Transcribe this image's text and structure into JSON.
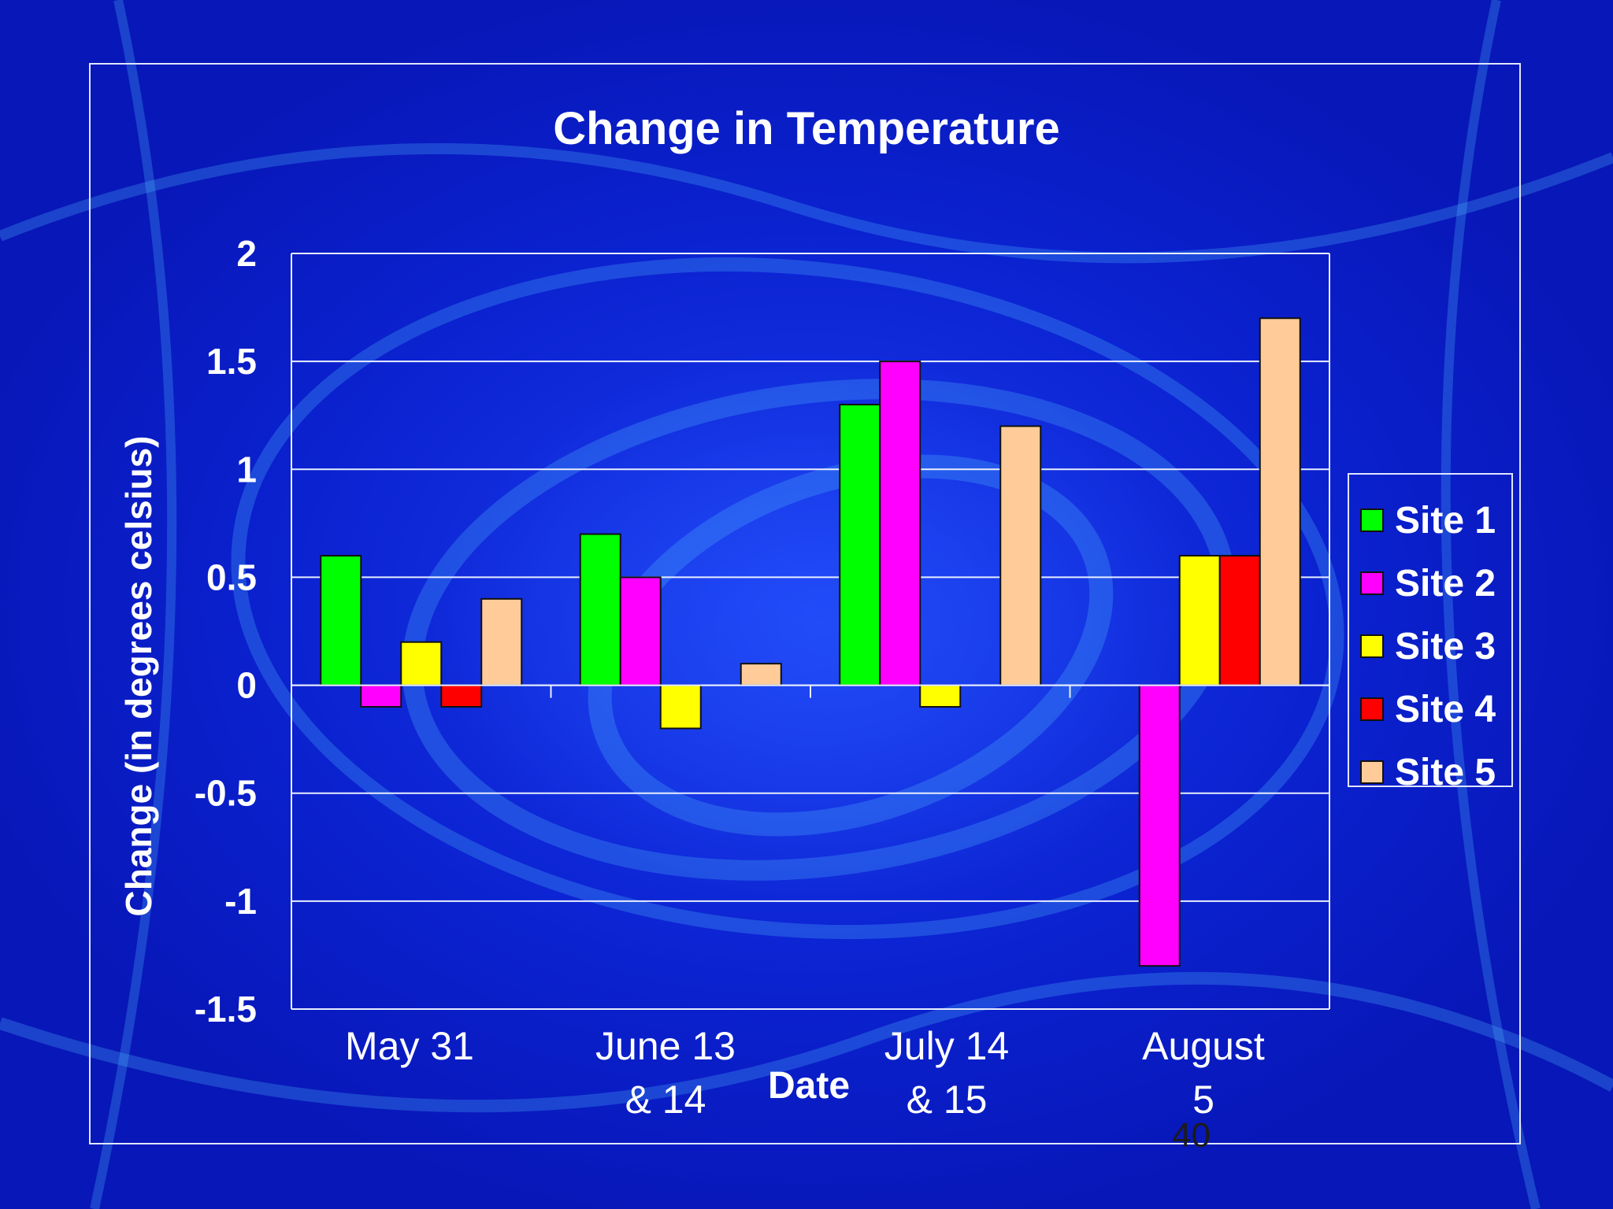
{
  "slide": {
    "number": "40"
  },
  "chart_data": {
    "type": "bar",
    "title": "Change in Temperature",
    "xlabel": "Date",
    "ylabel": "Change (in degrees celsius)",
    "ylim": [
      -1.5,
      2
    ],
    "yticks": [
      "2",
      "1.5",
      "1",
      "0.5",
      "0",
      "-0.5",
      "-1",
      "-1.5"
    ],
    "grid": true,
    "legend_position": "right",
    "categories": [
      [
        "May 31"
      ],
      [
        "June 13",
        "& 14"
      ],
      [
        "July 14",
        "& 15"
      ],
      [
        "August",
        "5"
      ]
    ],
    "series": [
      {
        "name": "Site 1",
        "color": "#00ff00",
        "values": [
          0.6,
          0.7,
          1.3,
          0
        ]
      },
      {
        "name": "Site 2",
        "color": "#ff00ff",
        "values": [
          -0.1,
          0.5,
          1.5,
          -1.3
        ]
      },
      {
        "name": "Site 3",
        "color": "#ffff00",
        "values": [
          0.2,
          -0.2,
          -0.1,
          0.6
        ]
      },
      {
        "name": "Site 4",
        "color": "#ff0000",
        "values": [
          -0.1,
          0,
          0,
          0.6
        ]
      },
      {
        "name": "Site 5",
        "color": "#ffcc99",
        "values": [
          0.4,
          0.1,
          1.2,
          1.7
        ]
      }
    ]
  }
}
